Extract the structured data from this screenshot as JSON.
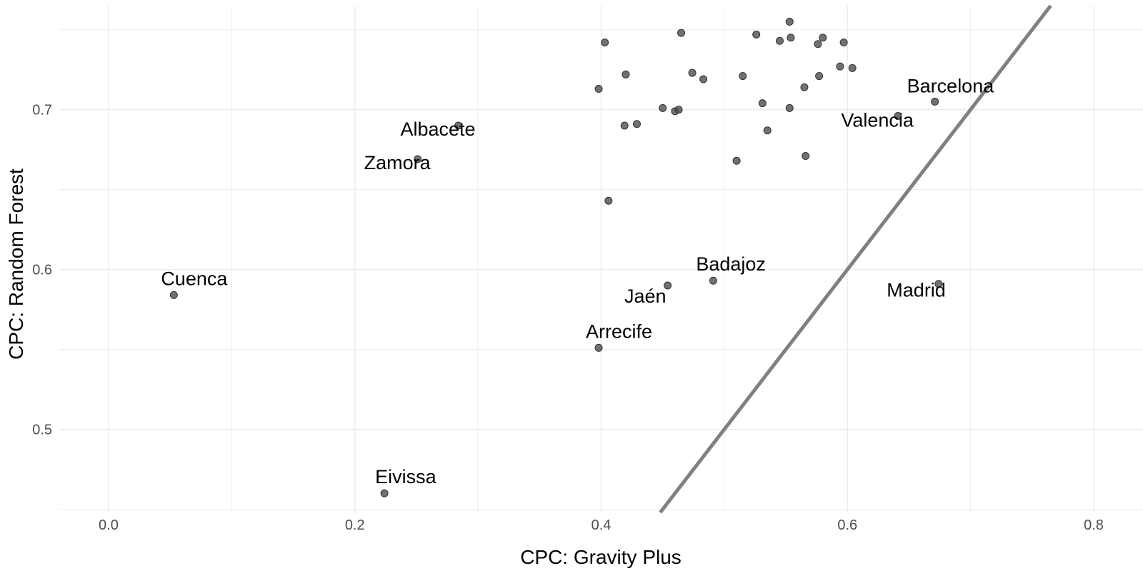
{
  "chart_data": {
    "type": "scatter",
    "xlabel": "CPC: Gravity Plus",
    "ylabel": "CPC: Random Forest",
    "xlim": [
      -0.04,
      0.84
    ],
    "ylim": [
      0.448,
      0.765
    ],
    "x_ticks": [
      0.0,
      0.2,
      0.4,
      0.6,
      0.8
    ],
    "x_tick_labels": [
      "0.0",
      "0.2",
      "0.4",
      "0.6",
      "0.8"
    ],
    "y_ticks": [
      0.5,
      0.6,
      0.7
    ],
    "y_tick_labels": [
      "0.5",
      "0.6",
      "0.7"
    ],
    "grid": true,
    "legend": "none",
    "colors": {
      "point": "#4d4d4d",
      "point_stroke": "#333333",
      "line": "#808080",
      "grid": "#ebebeb"
    },
    "reference_line": {
      "slope": 1,
      "intercept": 0
    },
    "points": [
      {
        "x": 0.053,
        "y": 0.584,
        "label": "Cuenca"
      },
      {
        "x": 0.224,
        "y": 0.46,
        "label": "Eivissa"
      },
      {
        "x": 0.251,
        "y": 0.669,
        "label": "Zamora"
      },
      {
        "x": 0.284,
        "y": 0.69,
        "label": "Albacete"
      },
      {
        "x": 0.398,
        "y": 0.551,
        "label": "Arrecife"
      },
      {
        "x": 0.454,
        "y": 0.59,
        "label": "Jaén"
      },
      {
        "x": 0.491,
        "y": 0.593,
        "label": "Badajoz"
      },
      {
        "x": 0.641,
        "y": 0.696,
        "label": "Valencia"
      },
      {
        "x": 0.671,
        "y": 0.705,
        "label": "Barcelona"
      },
      {
        "x": 0.674,
        "y": 0.591,
        "label": "Madrid"
      },
      {
        "x": 0.398,
        "y": 0.713
      },
      {
        "x": 0.403,
        "y": 0.742
      },
      {
        "x": 0.406,
        "y": 0.643
      },
      {
        "x": 0.419,
        "y": 0.69
      },
      {
        "x": 0.42,
        "y": 0.722
      },
      {
        "x": 0.429,
        "y": 0.691
      },
      {
        "x": 0.45,
        "y": 0.701
      },
      {
        "x": 0.46,
        "y": 0.699
      },
      {
        "x": 0.463,
        "y": 0.7
      },
      {
        "x": 0.465,
        "y": 0.748
      },
      {
        "x": 0.474,
        "y": 0.723
      },
      {
        "x": 0.483,
        "y": 0.719
      },
      {
        "x": 0.51,
        "y": 0.668
      },
      {
        "x": 0.515,
        "y": 0.721
      },
      {
        "x": 0.526,
        "y": 0.747
      },
      {
        "x": 0.531,
        "y": 0.704
      },
      {
        "x": 0.535,
        "y": 0.687
      },
      {
        "x": 0.545,
        "y": 0.743
      },
      {
        "x": 0.553,
        "y": 0.755
      },
      {
        "x": 0.553,
        "y": 0.701
      },
      {
        "x": 0.554,
        "y": 0.745
      },
      {
        "x": 0.565,
        "y": 0.714
      },
      {
        "x": 0.566,
        "y": 0.671
      },
      {
        "x": 0.576,
        "y": 0.741
      },
      {
        "x": 0.577,
        "y": 0.721
      },
      {
        "x": 0.58,
        "y": 0.745
      },
      {
        "x": 0.594,
        "y": 0.727
      },
      {
        "x": 0.597,
        "y": 0.742
      },
      {
        "x": 0.604,
        "y": 0.726
      }
    ]
  }
}
